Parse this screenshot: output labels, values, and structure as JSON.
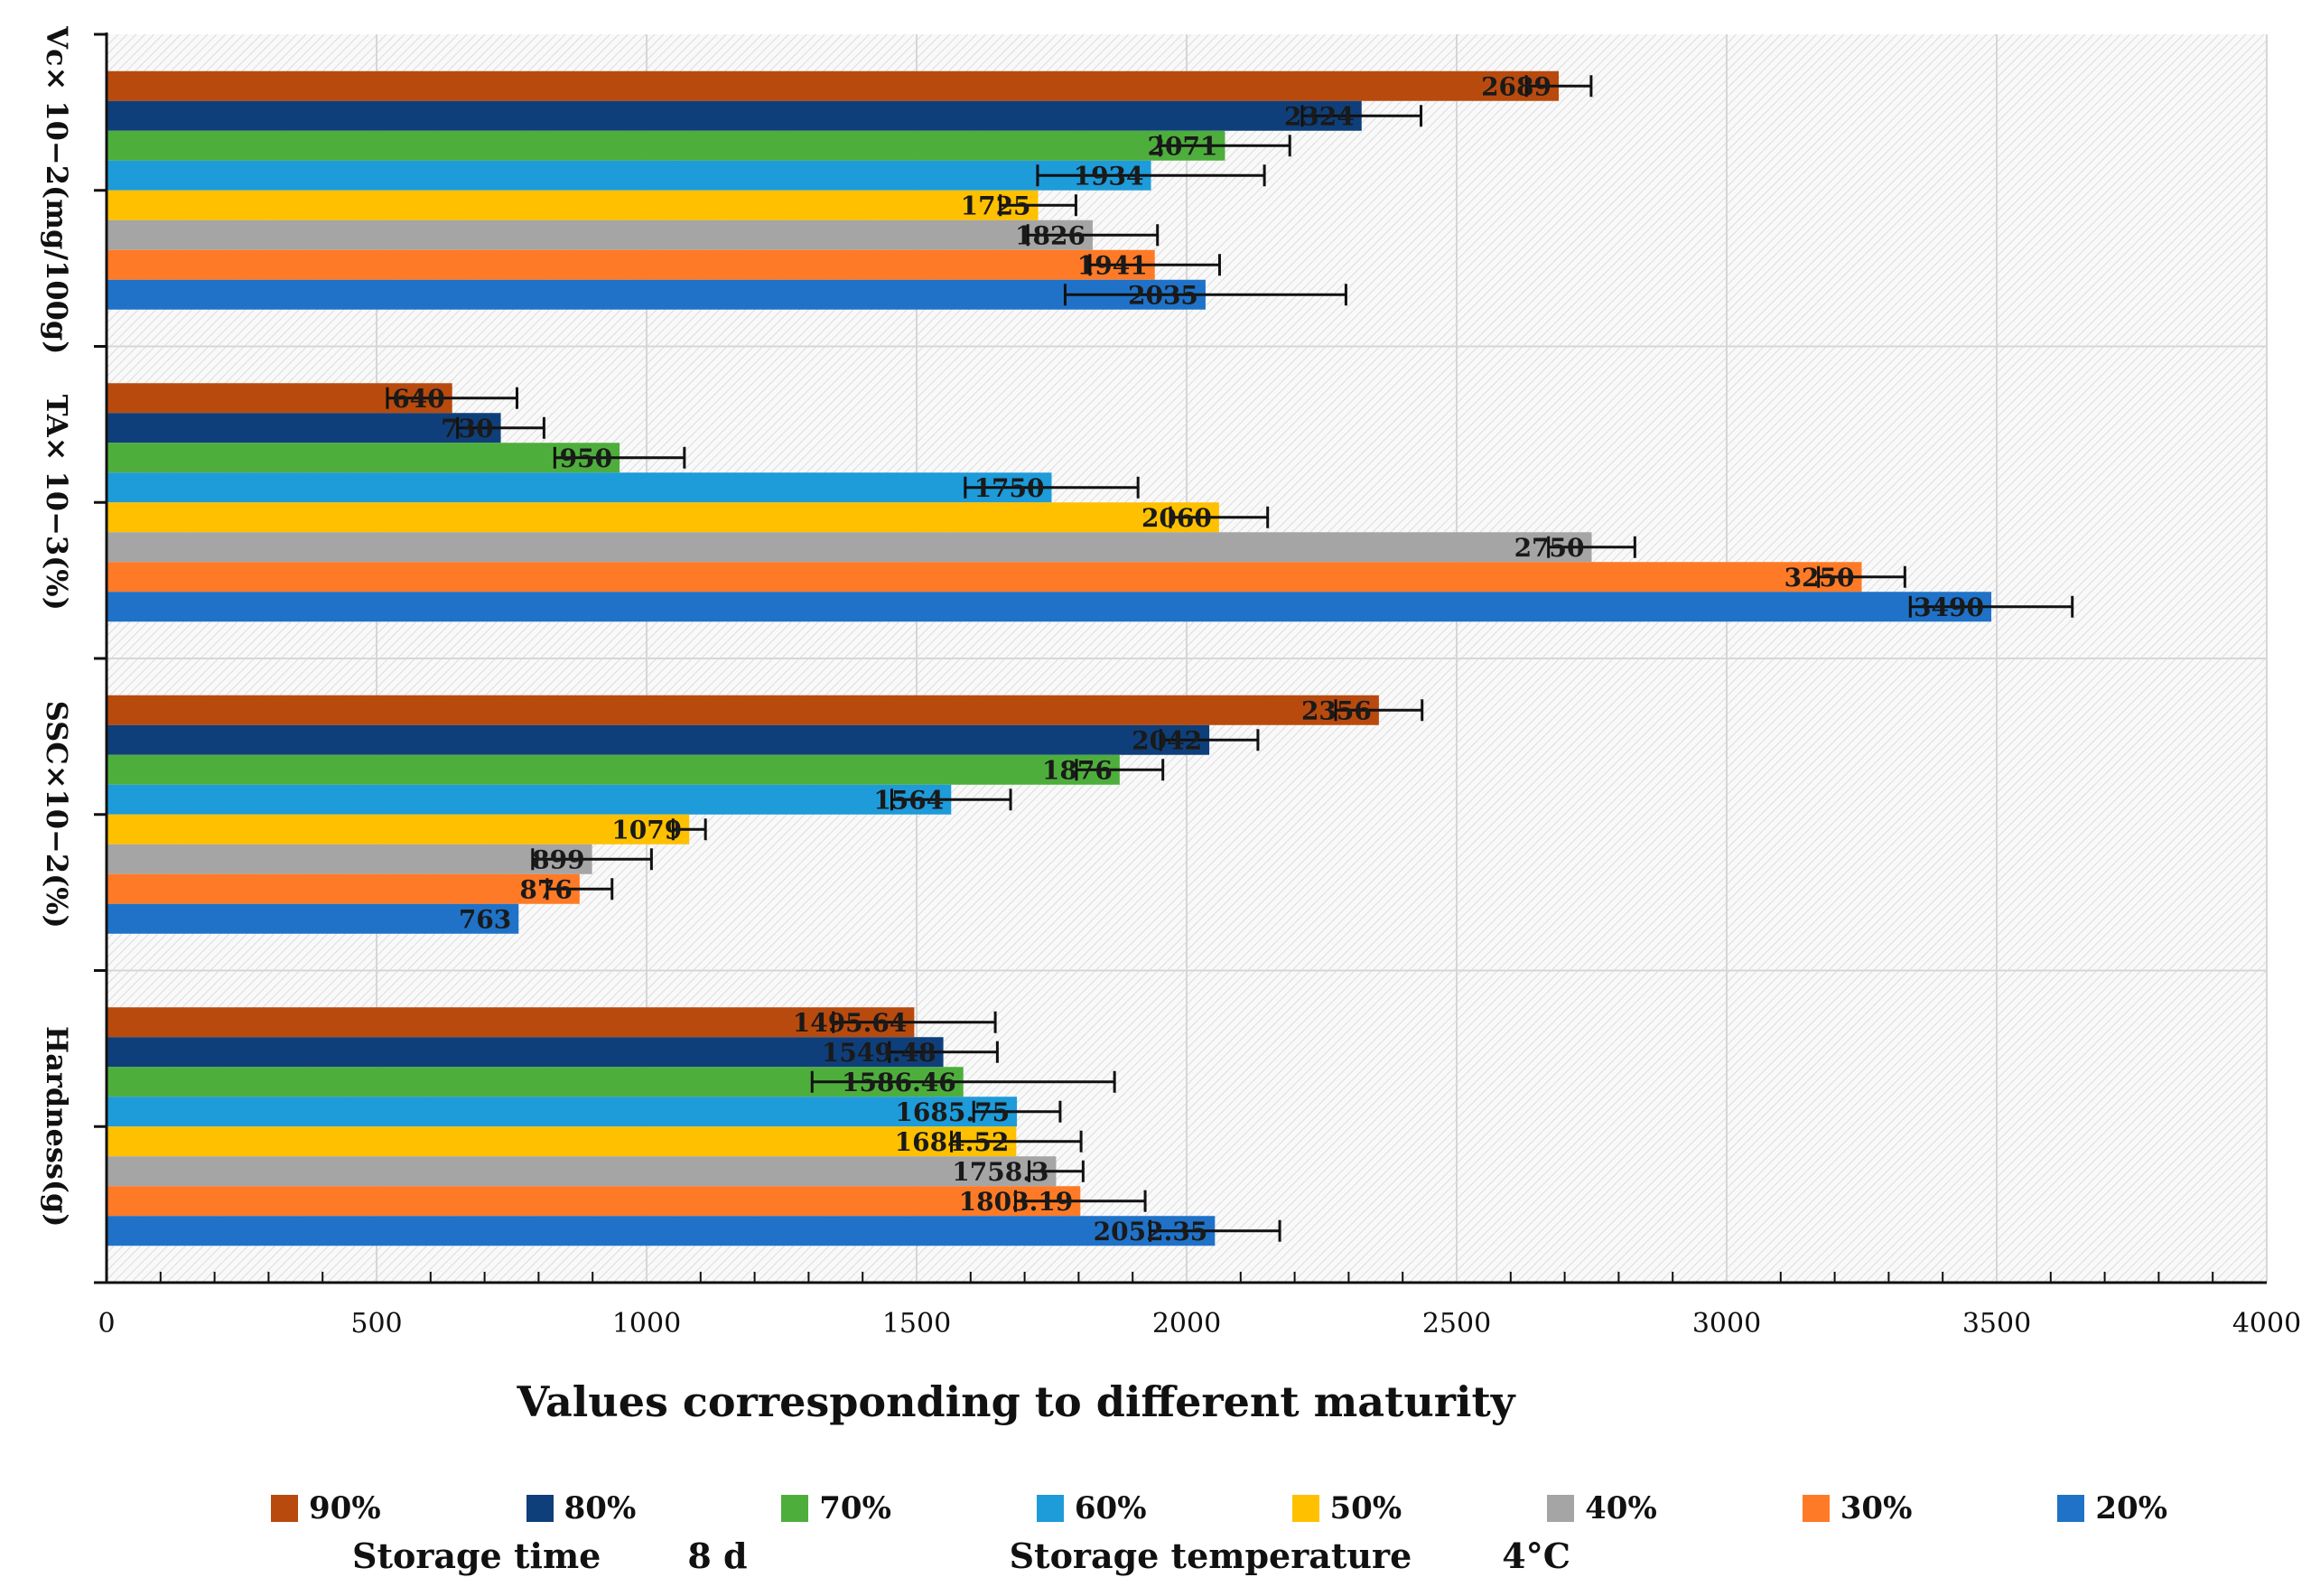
{
  "chart_data": {
    "type": "bar",
    "orientation": "horizontal",
    "xlabel": "Values corresponding to different maturity",
    "xlim": [
      0,
      4000
    ],
    "x_ticks": [
      "0",
      "500",
      "1000",
      "1500",
      "2000",
      "2500",
      "3000",
      "3500",
      "4000"
    ],
    "categories": [
      "Vc× 10−2(mg/100g)",
      "TA× 10−3(%)",
      "SSC×10−2(%)",
      "Hardness(g)"
    ],
    "series": [
      {
        "name": "90%",
        "color": "#B84A0E",
        "values": [
          2689,
          640,
          2356,
          1495.64
        ],
        "labels": [
          "2689",
          "640",
          "2356",
          "1495.64"
        ],
        "errors": [
          60,
          120,
          80,
          150
        ]
      },
      {
        "name": "80%",
        "color": "#0F3F7A",
        "values": [
          2324,
          730,
          2042,
          1549.48
        ],
        "labels": [
          "2324",
          "730",
          "2042",
          "1549.48"
        ],
        "errors": [
          110,
          80,
          90,
          100
        ]
      },
      {
        "name": "70%",
        "color": "#4EAE3C",
        "values": [
          2071,
          950,
          1876,
          1586.46
        ],
        "labels": [
          "2071",
          "950",
          "1876",
          "1586.46"
        ],
        "errors": [
          120,
          120,
          80,
          280
        ]
      },
      {
        "name": "60%",
        "color": "#1E9BD9",
        "values": [
          1934,
          1750,
          1564,
          1685.75
        ],
        "labels": [
          "1934",
          "1750",
          "1564",
          "1685.75"
        ],
        "errors": [
          210,
          160,
          110,
          80
        ]
      },
      {
        "name": "50%",
        "color": "#FFC000",
        "values": [
          1725,
          2060,
          1079,
          1684.52
        ],
        "labels": [
          "1725",
          "2060",
          "1079",
          "1684.52"
        ],
        "errors": [
          70,
          90,
          30,
          120
        ]
      },
      {
        "name": "40%",
        "color": "#A5A5A5",
        "values": [
          1826,
          2750,
          899,
          1758.3
        ],
        "labels": [
          "1826",
          "2750",
          "899",
          "1758.3"
        ],
        "errors": [
          120,
          80,
          110,
          50
        ]
      },
      {
        "name": "30%",
        "color": "#FF7A26",
        "values": [
          1941,
          3250,
          876,
          1803.19
        ],
        "labels": [
          "1941",
          "3250",
          "876",
          "1803.19"
        ],
        "errors": [
          120,
          80,
          60,
          120
        ]
      },
      {
        "name": "20%",
        "color": "#1F72C8",
        "values": [
          2035,
          3490,
          763,
          2052.35
        ],
        "labels": [
          "2035",
          "3490",
          "763",
          "2052.35"
        ],
        "errors": [
          260,
          150,
          0,
          120
        ]
      }
    ]
  },
  "footer": {
    "storage_time_label": "Storage time",
    "storage_time_value": "8 d",
    "storage_temp_label": "Storage temperature",
    "storage_temp_value": "4°C"
  }
}
